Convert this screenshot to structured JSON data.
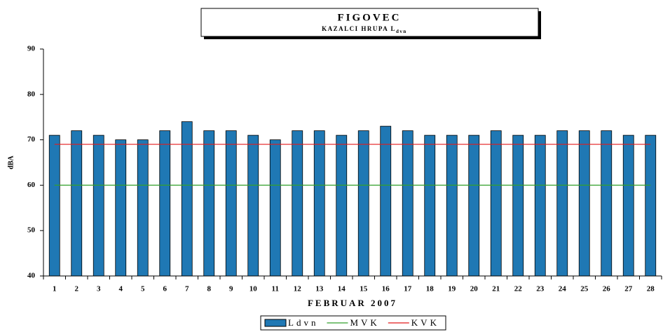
{
  "chart_data": {
    "type": "bar",
    "title": "FIGOVEC",
    "subtitle": "KAZALCI HRUPA L",
    "subtitle_subscript": "dvn",
    "ylabel": "dBA",
    "xlabel": "FEBRUAR 2007",
    "categories": [
      "1",
      "2",
      "3",
      "4",
      "5",
      "6",
      "7",
      "8",
      "9",
      "10",
      "11",
      "12",
      "13",
      "14",
      "15",
      "16",
      "17",
      "18",
      "19",
      "20",
      "21",
      "22",
      "23",
      "24",
      "25",
      "26",
      "27",
      "28"
    ],
    "series": [
      {
        "name": "Ldvn",
        "type": "bar",
        "color": "#1f78b4",
        "values": [
          71,
          72,
          71,
          70,
          70,
          72,
          74,
          72,
          72,
          71,
          70,
          72,
          72,
          71,
          72,
          73,
          72,
          71,
          71,
          71,
          72,
          71,
          71,
          72,
          72,
          72,
          71,
          71
        ]
      },
      {
        "name": "MVK",
        "type": "line",
        "color": "#33a02c",
        "values": [
          60,
          60,
          60,
          60,
          60,
          60,
          60,
          60,
          60,
          60,
          60,
          60,
          60,
          60,
          60,
          60,
          60,
          60,
          60,
          60,
          60,
          60,
          60,
          60,
          60,
          60,
          60,
          60
        ]
      },
      {
        "name": "KVK",
        "type": "line",
        "color": "#e31a1c",
        "values": [
          69,
          69,
          69,
          69,
          69,
          69,
          69,
          69,
          69,
          69,
          69,
          69,
          69,
          69,
          69,
          69,
          69,
          69,
          69,
          69,
          69,
          69,
          69,
          69,
          69,
          69,
          69,
          69
        ]
      }
    ],
    "ylim": [
      40,
      90
    ],
    "yticks": [
      40,
      50,
      60,
      70,
      80,
      90
    ],
    "legend": "bottom"
  }
}
